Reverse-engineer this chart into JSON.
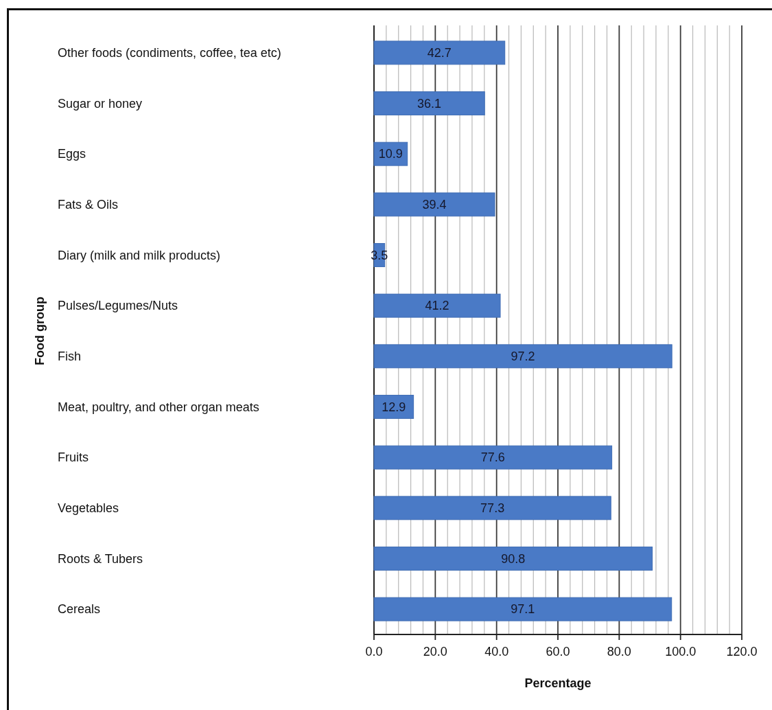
{
  "chart_data": {
    "type": "bar",
    "orientation": "horizontal",
    "categories": [
      "Other foods (condiments, coffee, tea etc)",
      "Sugar or honey",
      "Eggs",
      "Fats & Oils",
      "Diary (milk and milk products)",
      "Pulses/Legumes/Nuts",
      "Fish",
      "Meat, poultry, and other organ meats",
      "Fruits",
      "Vegetables",
      "Roots & Tubers",
      "Cereals"
    ],
    "values": [
      42.7,
      36.1,
      10.9,
      39.4,
      3.5,
      41.2,
      97.2,
      12.9,
      77.6,
      77.3,
      90.8,
      97.1
    ],
    "color": "#4a7ac6",
    "xlabel": "Percentage",
    "ylabel": "Food group",
    "xlim": [
      0,
      120
    ],
    "xticks": [
      {
        "value": 0,
        "label": "0.0"
      },
      {
        "value": 4,
        "label": null
      },
      {
        "value": 8,
        "label": null
      },
      {
        "value": 12,
        "label": null
      },
      {
        "value": 16,
        "label": null
      },
      {
        "value": 20,
        "label": "20.0"
      },
      {
        "value": 24,
        "label": null
      },
      {
        "value": 28,
        "label": null
      },
      {
        "value": 32,
        "label": null
      },
      {
        "value": 36,
        "label": null
      },
      {
        "value": 40,
        "label": "40.0"
      },
      {
        "value": 44,
        "label": null
      },
      {
        "value": 48,
        "label": null
      },
      {
        "value": 52,
        "label": null
      },
      {
        "value": 56,
        "label": null
      },
      {
        "value": 60,
        "label": "60.0"
      },
      {
        "value": 64,
        "label": null
      },
      {
        "value": 68,
        "label": null
      },
      {
        "value": 72,
        "label": null
      },
      {
        "value": 76,
        "label": null
      },
      {
        "value": 80,
        "label": "80.0"
      },
      {
        "value": 84,
        "label": null
      },
      {
        "value": 88,
        "label": null
      },
      {
        "value": 92,
        "label": null
      },
      {
        "value": 96,
        "label": null
      },
      {
        "value": 100,
        "label": "100.0"
      },
      {
        "value": 104,
        "label": null
      },
      {
        "value": 108,
        "label": null
      },
      {
        "value": 112,
        "label": null
      },
      {
        "value": 116,
        "label": null
      },
      {
        "value": 120,
        "label": "120.0"
      }
    ],
    "grid": "x",
    "data_labels": true
  }
}
